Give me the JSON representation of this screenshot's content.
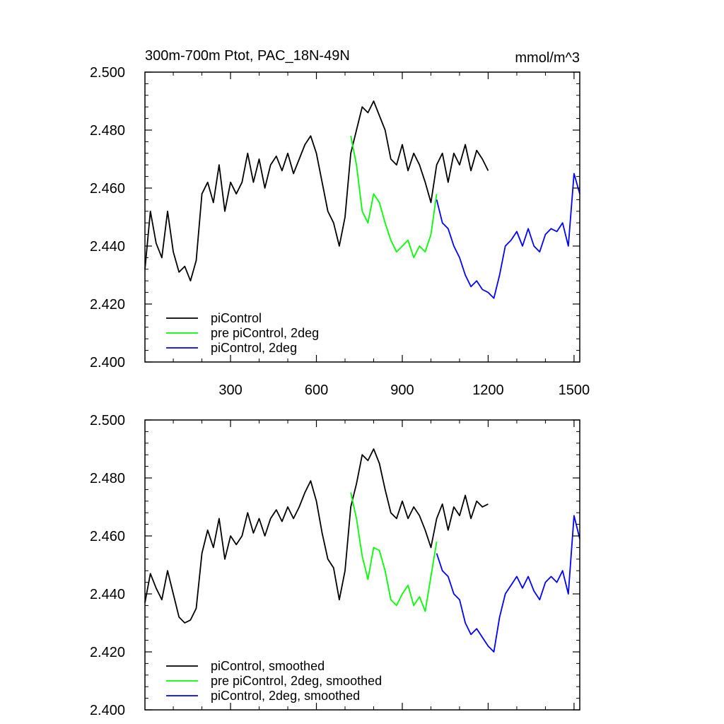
{
  "colors": {
    "black_series": "#000000",
    "green_series": "#00ff00",
    "blue_series": "#0000ff",
    "axes": "#000000",
    "background": "#ffffff"
  },
  "chart_data": [
    {
      "type": "line",
      "title": "300m-700m Ptot, PAC_18N-49N",
      "units_label": "mmol/m^3",
      "xlabel": "",
      "ylabel": "",
      "xlim": [
        1,
        1520
      ],
      "ylim": [
        2.4,
        2.5
      ],
      "grid": false,
      "legend_position": "bottom-left",
      "xticks": [
        300,
        600,
        900,
        1200,
        1500
      ],
      "xtick_labels": [
        "300",
        "600",
        "900",
        "1200",
        "1500"
      ],
      "yticks": [
        2.4,
        2.42,
        2.44,
        2.46,
        2.48,
        2.5
      ],
      "ytick_labels": [
        "2.400",
        "2.420",
        "2.440",
        "2.460",
        "2.480",
        "2.500"
      ],
      "series": [
        {
          "name": "piControl",
          "color": "#000000",
          "x": [
            1,
            20,
            40,
            60,
            80,
            100,
            120,
            140,
            160,
            180,
            200,
            220,
            240,
            260,
            280,
            300,
            320,
            340,
            360,
            380,
            400,
            420,
            440,
            460,
            480,
            500,
            520,
            540,
            560,
            580,
            600,
            620,
            640,
            660,
            680,
            700,
            720,
            740,
            760,
            780,
            800,
            820,
            840,
            860,
            880,
            900,
            920,
            940,
            960,
            980,
            1000,
            1020,
            1040,
            1060,
            1080,
            1100,
            1120,
            1140,
            1160,
            1180,
            1200
          ],
          "y": [
            2.432,
            2.452,
            2.441,
            2.436,
            2.452,
            2.438,
            2.431,
            2.433,
            2.428,
            2.435,
            2.458,
            2.462,
            2.455,
            2.468,
            2.452,
            2.462,
            2.458,
            2.462,
            2.472,
            2.462,
            2.47,
            2.46,
            2.468,
            2.471,
            2.466,
            2.472,
            2.465,
            2.47,
            2.475,
            2.478,
            2.472,
            2.462,
            2.452,
            2.448,
            2.44,
            2.45,
            2.472,
            2.48,
            2.488,
            2.486,
            2.49,
            2.485,
            2.48,
            2.47,
            2.468,
            2.475,
            2.466,
            2.472,
            2.468,
            2.462,
            2.455,
            2.468,
            2.472,
            2.462,
            2.472,
            2.468,
            2.475,
            2.466,
            2.473,
            2.47,
            2.466
          ]
        },
        {
          "name": "pre piControl, 2deg",
          "color": "#00ff00",
          "x": [
            720,
            740,
            760,
            780,
            800,
            820,
            840,
            860,
            880,
            900,
            920,
            940,
            960,
            980,
            1000,
            1020
          ],
          "y": [
            2.478,
            2.468,
            2.452,
            2.448,
            2.458,
            2.455,
            2.448,
            2.442,
            2.438,
            2.44,
            2.442,
            2.436,
            2.44,
            2.438,
            2.444,
            2.458
          ]
        },
        {
          "name": "piControl, 2deg",
          "color": "#0000ff",
          "x": [
            1020,
            1040,
            1060,
            1080,
            1100,
            1120,
            1140,
            1160,
            1180,
            1200,
            1220,
            1240,
            1260,
            1280,
            1300,
            1320,
            1340,
            1360,
            1380,
            1400,
            1420,
            1440,
            1460,
            1480,
            1500,
            1520
          ],
          "y": [
            2.456,
            2.448,
            2.446,
            2.44,
            2.436,
            2.43,
            2.426,
            2.428,
            2.425,
            2.424,
            2.422,
            2.43,
            2.44,
            2.442,
            2.445,
            2.44,
            2.446,
            2.44,
            2.438,
            2.444,
            2.446,
            2.445,
            2.448,
            2.44,
            2.465,
            2.458
          ]
        }
      ]
    },
    {
      "type": "line",
      "title": "",
      "xlabel": "",
      "ylabel": "",
      "xlim": [
        1,
        1520
      ],
      "ylim": [
        2.4,
        2.5
      ],
      "grid": false,
      "legend_position": "bottom-left",
      "yticks": [
        2.4,
        2.42,
        2.44,
        2.46,
        2.48,
        2.5
      ],
      "ytick_labels": [
        "2.400",
        "2.420",
        "2.440",
        "2.460",
        "2.480",
        "2.500"
      ],
      "series": [
        {
          "name": "piControl, smoothed",
          "color": "#000000",
          "x": [
            1,
            20,
            40,
            60,
            80,
            100,
            120,
            140,
            160,
            180,
            200,
            220,
            240,
            260,
            280,
            300,
            320,
            340,
            360,
            380,
            400,
            420,
            440,
            460,
            480,
            500,
            520,
            540,
            560,
            580,
            600,
            620,
            640,
            660,
            680,
            700,
            720,
            740,
            760,
            780,
            800,
            820,
            840,
            860,
            880,
            900,
            920,
            940,
            960,
            980,
            1000,
            1020,
            1040,
            1060,
            1080,
            1100,
            1120,
            1140,
            1160,
            1180,
            1200
          ],
          "y": [
            2.437,
            2.447,
            2.442,
            2.438,
            2.448,
            2.44,
            2.432,
            2.43,
            2.431,
            2.435,
            2.454,
            2.462,
            2.456,
            2.466,
            2.452,
            2.46,
            2.457,
            2.46,
            2.468,
            2.461,
            2.466,
            2.46,
            2.466,
            2.469,
            2.465,
            2.47,
            2.466,
            2.47,
            2.475,
            2.479,
            2.472,
            2.461,
            2.452,
            2.449,
            2.438,
            2.448,
            2.47,
            2.478,
            2.488,
            2.486,
            2.49,
            2.485,
            2.476,
            2.468,
            2.466,
            2.472,
            2.466,
            2.47,
            2.467,
            2.462,
            2.456,
            2.466,
            2.471,
            2.462,
            2.47,
            2.467,
            2.474,
            2.466,
            2.472,
            2.47,
            2.471
          ]
        },
        {
          "name": "pre piControl, 2deg, smoothed",
          "color": "#00ff00",
          "x": [
            720,
            740,
            760,
            780,
            800,
            820,
            840,
            860,
            880,
            900,
            920,
            940,
            960,
            980,
            1000,
            1020
          ],
          "y": [
            2.475,
            2.466,
            2.453,
            2.445,
            2.456,
            2.455,
            2.448,
            2.438,
            2.436,
            2.44,
            2.443,
            2.436,
            2.439,
            2.434,
            2.446,
            2.458
          ]
        },
        {
          "name": "piControl, 2deg, smoothed",
          "color": "#0000ff",
          "x": [
            1020,
            1040,
            1060,
            1080,
            1100,
            1120,
            1140,
            1160,
            1180,
            1200,
            1220,
            1240,
            1260,
            1280,
            1300,
            1320,
            1340,
            1360,
            1380,
            1400,
            1420,
            1440,
            1460,
            1480,
            1500,
            1520
          ],
          "y": [
            2.454,
            2.448,
            2.446,
            2.44,
            2.438,
            2.43,
            2.426,
            2.428,
            2.425,
            2.422,
            2.42,
            2.432,
            2.44,
            2.443,
            2.446,
            2.442,
            2.446,
            2.441,
            2.438,
            2.444,
            2.446,
            2.444,
            2.448,
            2.44,
            2.467,
            2.459
          ]
        }
      ]
    }
  ]
}
